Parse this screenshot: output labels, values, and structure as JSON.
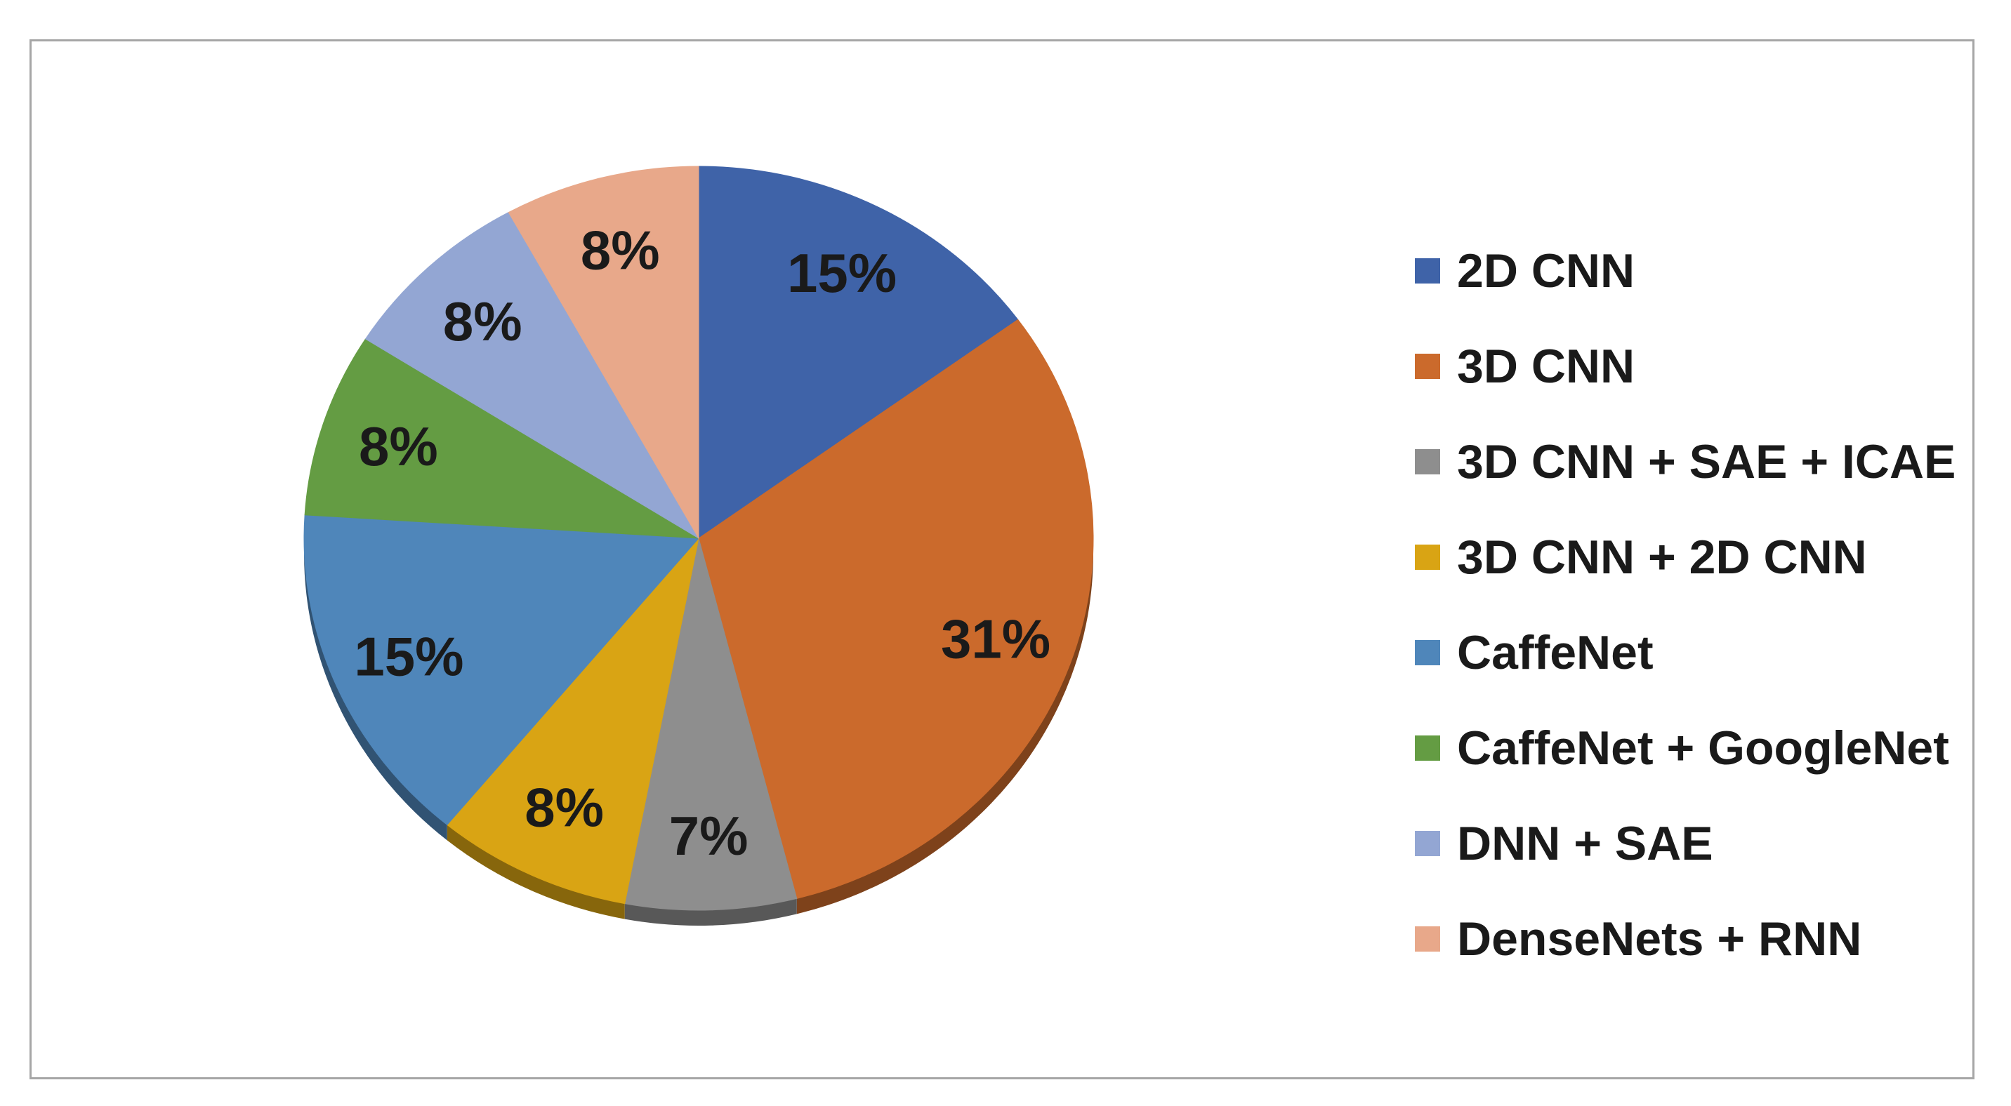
{
  "chart_data": {
    "type": "pie",
    "title": "",
    "categories": [
      "2D CNN",
      "3D CNN",
      "3D CNN + SAE + ICAE",
      "3D CNN + 2D CNN",
      "CaffeNet",
      "CaffeNet + GoogleNet",
      "DNN + SAE",
      "DenseNets + RNN"
    ],
    "values": [
      15,
      31,
      7,
      8,
      15,
      8,
      8,
      8
    ],
    "data_labels": [
      "15%",
      "31%",
      "7%",
      "8%",
      "15%",
      "8%",
      "8%",
      "8%"
    ],
    "colors": [
      "#3f63a8",
      "#cb6a2c",
      "#8e8e8e",
      "#d9a414",
      "#4f86ba",
      "#649c43",
      "#93a6d3",
      "#e8a88a"
    ],
    "legend_position": "right",
    "start": "12 o'clock, clockwise"
  }
}
